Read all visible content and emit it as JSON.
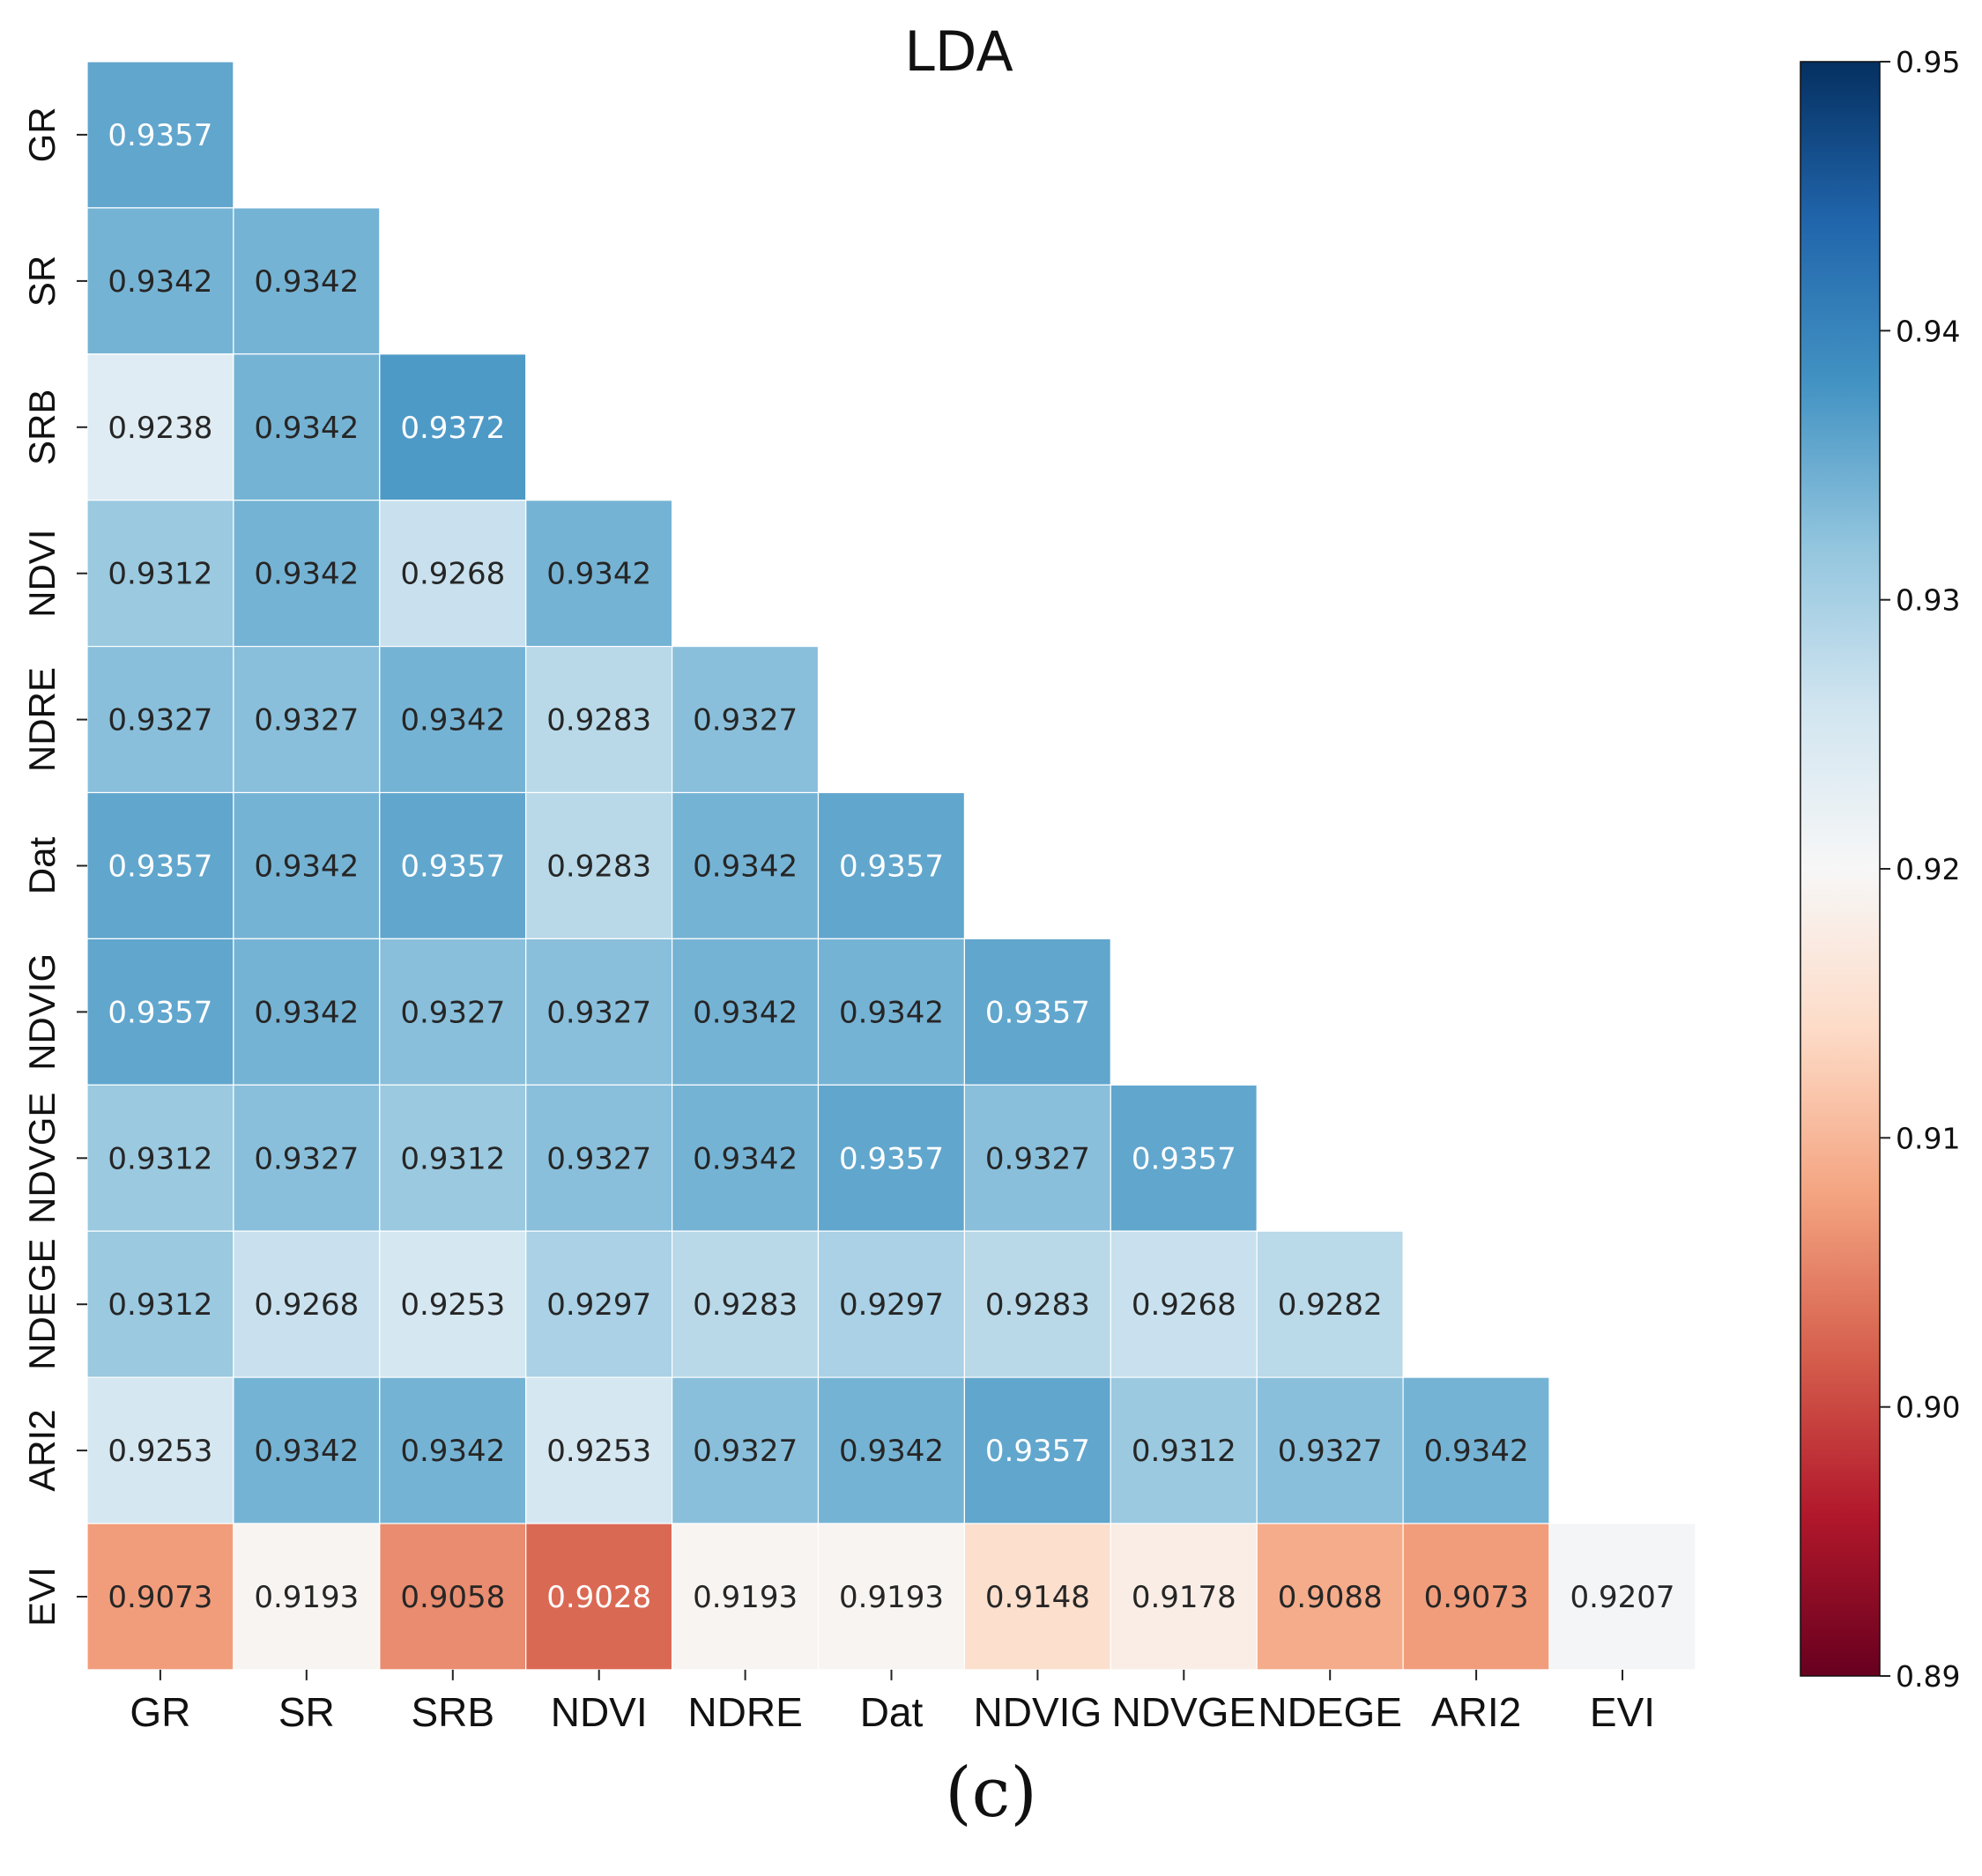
{
  "chart_data": {
    "type": "heatmap",
    "title": "LDA",
    "labels": [
      "GR",
      "SR",
      "SRB",
      "NDVI",
      "NDRE",
      "Dat",
      "NDVIG",
      "NDVGE",
      "NDEGE",
      "ARI2",
      "EVI"
    ],
    "matrix": [
      [
        0.9357
      ],
      [
        0.9342,
        0.9342
      ],
      [
        0.9238,
        0.9342,
        0.9372
      ],
      [
        0.9312,
        0.9342,
        0.9268,
        0.9342
      ],
      [
        0.9327,
        0.9327,
        0.9342,
        0.9283,
        0.9327
      ],
      [
        0.9357,
        0.9342,
        0.9357,
        0.9283,
        0.9342,
        0.9357
      ],
      [
        0.9357,
        0.9342,
        0.9327,
        0.9327,
        0.9342,
        0.9342,
        0.9357
      ],
      [
        0.9312,
        0.9327,
        0.9312,
        0.9327,
        0.9342,
        0.9357,
        0.9327,
        0.9357
      ],
      [
        0.9312,
        0.9268,
        0.9253,
        0.9297,
        0.9283,
        0.9297,
        0.9283,
        0.9268,
        0.9282
      ],
      [
        0.9253,
        0.9342,
        0.9342,
        0.9253,
        0.9327,
        0.9342,
        0.9357,
        0.9312,
        0.9327,
        0.9342
      ],
      [
        0.9073,
        0.9193,
        0.9058,
        0.9028,
        0.9193,
        0.9193,
        0.9148,
        0.9178,
        0.9088,
        0.9073,
        0.9207
      ]
    ],
    "colorbar": {
      "min": 0.89,
      "max": 0.95,
      "ticks": [
        "0.95",
        "0.94",
        "0.93",
        "0.92",
        "0.91",
        "0.90",
        "0.89"
      ],
      "colormap": "RdBu",
      "stops": [
        "#67001f",
        "#b2182b",
        "#d6604d",
        "#f4a582",
        "#fddbc7",
        "#f7f7f7",
        "#d1e5f0",
        "#92c5de",
        "#4393c3",
        "#2166ac",
        "#053061"
      ]
    },
    "caption": "(c)"
  }
}
